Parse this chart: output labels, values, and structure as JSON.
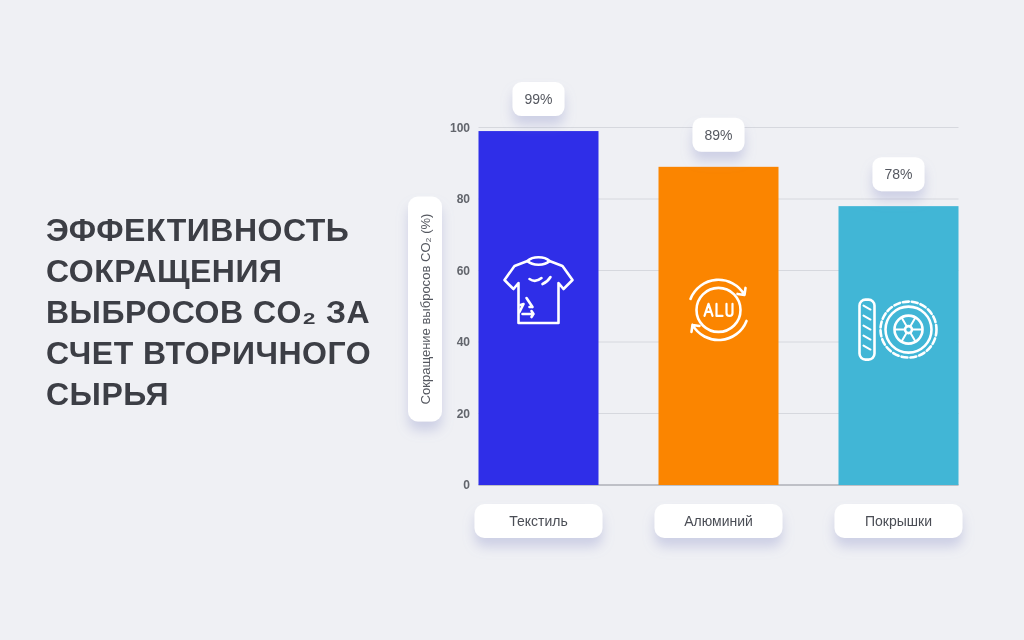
{
  "chart_data": {
    "type": "bar",
    "title": "ЭФФЕКТИВНОСТЬ СОКРАЩЕНИЯ ВЫБРОСОВ CO₂ ЗА СЧЕТ ВТОРИЧНОГО СЫРЬЯ",
    "ylabel": "Сокращение выбросов CO₂ (%)",
    "categories": [
      "Текстиль",
      "Алюминий",
      "Покрышки"
    ],
    "values": [
      99,
      89,
      78
    ],
    "colors": [
      "#2f2ee8",
      "#fb8500",
      "#41b6d6"
    ],
    "value_labels": [
      "99%",
      "89%",
      "78%"
    ],
    "ylim": [
      0,
      100
    ],
    "yticks": [
      0,
      20,
      40,
      60,
      80,
      100
    ],
    "grid": "y"
  }
}
